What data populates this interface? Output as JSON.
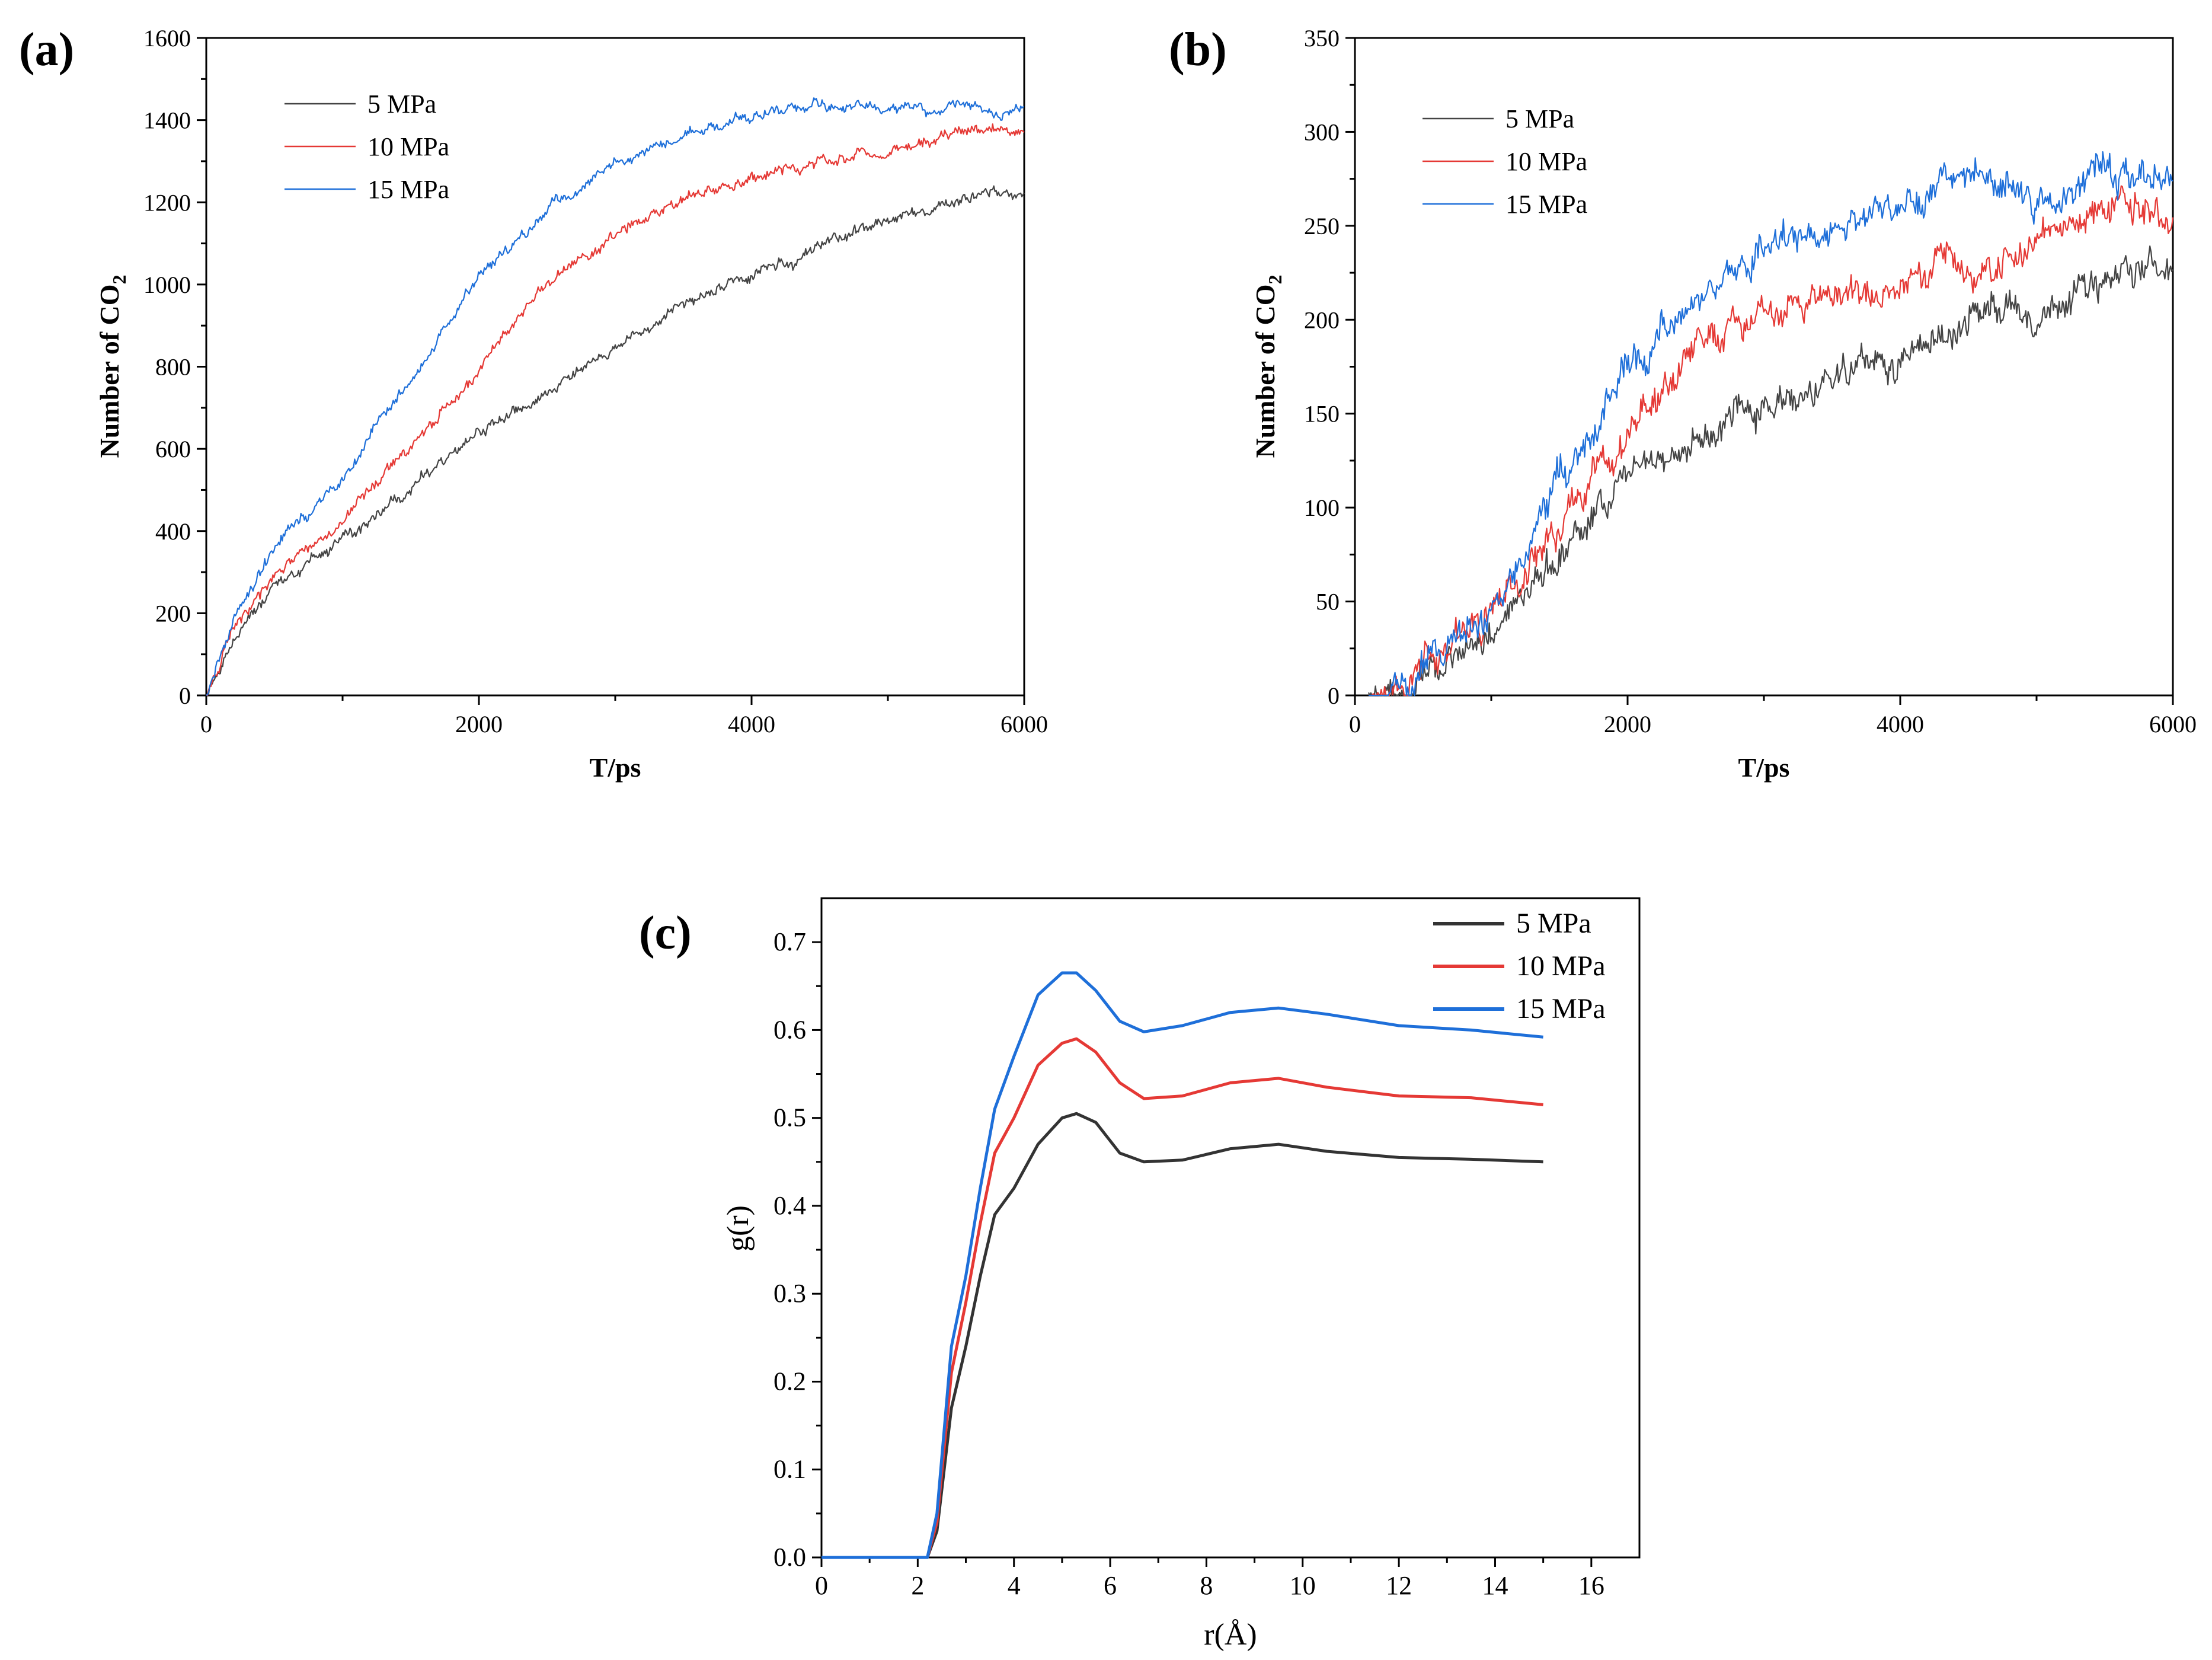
{
  "chart_data": [
    {
      "panel": "(a)",
      "type": "line",
      "xlabel": "T/ps",
      "ylabel": "Number of CO",
      "ylabel_subscript": "2",
      "xlim": [
        0,
        6000
      ],
      "ylim": [
        0,
        1600
      ],
      "xticks": [
        0,
        2000,
        4000,
        6000
      ],
      "yticks": [
        0,
        200,
        400,
        600,
        800,
        1000,
        1200,
        1400,
        1600
      ],
      "legend_position": "top-left",
      "series": [
        {
          "name": "5 MPa",
          "color": "#444444",
          "x": [
            0,
            200,
            500,
            1000,
            1500,
            2000,
            2500,
            3000,
            3500,
            4000,
            4500,
            5000,
            5500,
            6000
          ],
          "y": [
            0,
            150,
            260,
            370,
            500,
            640,
            730,
            860,
            940,
            1020,
            1090,
            1160,
            1200,
            1230
          ]
        },
        {
          "name": "10 MPa",
          "color": "#e53935",
          "x": [
            0,
            200,
            500,
            1000,
            1500,
            2000,
            2500,
            3000,
            3500,
            4000,
            4500,
            5000,
            5500,
            6000
          ],
          "y": [
            0,
            160,
            280,
            430,
            610,
            800,
            1000,
            1130,
            1200,
            1260,
            1300,
            1330,
            1370,
            1380
          ]
        },
        {
          "name": "15 MPa",
          "color": "#1e6fd9",
          "x": [
            0,
            200,
            500,
            1000,
            1500,
            2000,
            2500,
            3000,
            3500,
            4000,
            4500,
            5000,
            5500,
            6000
          ],
          "y": [
            0,
            180,
            360,
            530,
            760,
            1020,
            1180,
            1300,
            1360,
            1410,
            1440,
            1430,
            1440,
            1420
          ]
        }
      ]
    },
    {
      "panel": "(b)",
      "type": "line",
      "xlabel": "T/ps",
      "ylabel": "Number of CO",
      "ylabel_subscript": "2",
      "xlim": [
        0,
        6000
      ],
      "ylim": [
        0,
        350
      ],
      "xticks": [
        0,
        2000,
        4000,
        6000
      ],
      "yticks": [
        0,
        50,
        100,
        150,
        200,
        250,
        300,
        350
      ],
      "legend_position": "top-left",
      "series": [
        {
          "name": "5 MPa",
          "color": "#444444",
          "x": [
            100,
            400,
            600,
            1000,
            1500,
            2000,
            2500,
            3000,
            3500,
            4000,
            4500,
            5000,
            5500,
            6000
          ],
          "y": [
            0,
            2,
            12,
            38,
            75,
            125,
            140,
            155,
            165,
            180,
            200,
            210,
            220,
            230
          ]
        },
        {
          "name": "10 MPa",
          "color": "#e53935",
          "x": [
            100,
            400,
            600,
            1000,
            1500,
            2000,
            2500,
            3000,
            3500,
            4000,
            4500,
            5000,
            5500,
            6000
          ],
          "y": [
            0,
            3,
            15,
            45,
            90,
            140,
            185,
            205,
            215,
            220,
            230,
            245,
            260,
            255
          ]
        },
        {
          "name": "15 MPa",
          "color": "#1e6fd9",
          "x": [
            100,
            400,
            600,
            1000,
            1500,
            2000,
            2500,
            3000,
            3500,
            4000,
            4500,
            5000,
            5500,
            6000
          ],
          "y": [
            0,
            4,
            20,
            55,
            110,
            170,
            210,
            235,
            250,
            260,
            280,
            265,
            275,
            270
          ]
        }
      ]
    },
    {
      "panel": "(c)",
      "type": "line",
      "xlabel": "r(Å)",
      "ylabel": "g(r)",
      "xlim": [
        0,
        17
      ],
      "ylim": [
        0,
        0.75
      ],
      "xticks": [
        0,
        2,
        4,
        6,
        8,
        10,
        12,
        14,
        16
      ],
      "yticks": [
        0.0,
        0.1,
        0.2,
        0.3,
        0.4,
        0.5,
        0.6,
        0.7
      ],
      "ytick_labels": [
        "0.0",
        "0.1",
        "0.2",
        "0.3",
        "0.4",
        "0.5",
        "0.6",
        "0.7"
      ],
      "legend_position": "top-right",
      "series": [
        {
          "name": "5 MPa",
          "color": "#333333",
          "x": [
            0,
            2.2,
            2.4,
            2.7,
            3.0,
            3.3,
            3.6,
            4.0,
            4.5,
            5.0,
            5.3,
            5.7,
            6.2,
            6.7,
            7.5,
            8.5,
            9.5,
            10.5,
            12,
            13.5,
            15
          ],
          "y": [
            0,
            0,
            0.03,
            0.17,
            0.24,
            0.32,
            0.39,
            0.42,
            0.47,
            0.5,
            0.505,
            0.495,
            0.46,
            0.45,
            0.452,
            0.465,
            0.47,
            0.462,
            0.455,
            0.453,
            0.45
          ]
        },
        {
          "name": "10 MPa",
          "color": "#e53935",
          "x": [
            0,
            2.2,
            2.4,
            2.7,
            3.0,
            3.3,
            3.6,
            4.0,
            4.5,
            5.0,
            5.3,
            5.7,
            6.2,
            6.7,
            7.5,
            8.5,
            9.5,
            10.5,
            12,
            13.5,
            15
          ],
          "y": [
            0,
            0,
            0.04,
            0.21,
            0.29,
            0.38,
            0.46,
            0.5,
            0.56,
            0.585,
            0.59,
            0.575,
            0.54,
            0.522,
            0.525,
            0.54,
            0.545,
            0.535,
            0.525,
            0.523,
            0.515
          ]
        },
        {
          "name": "15 MPa",
          "color": "#1e6fd9",
          "x": [
            0,
            2.2,
            2.4,
            2.7,
            3.0,
            3.3,
            3.6,
            4.0,
            4.5,
            5.0,
            5.3,
            5.7,
            6.2,
            6.7,
            7.5,
            8.5,
            9.5,
            10.5,
            12,
            13.5,
            15
          ],
          "y": [
            0,
            0,
            0.05,
            0.24,
            0.32,
            0.42,
            0.51,
            0.57,
            0.64,
            0.665,
            0.665,
            0.645,
            0.61,
            0.598,
            0.605,
            0.62,
            0.625,
            0.618,
            0.605,
            0.6,
            0.592
          ]
        }
      ]
    }
  ]
}
